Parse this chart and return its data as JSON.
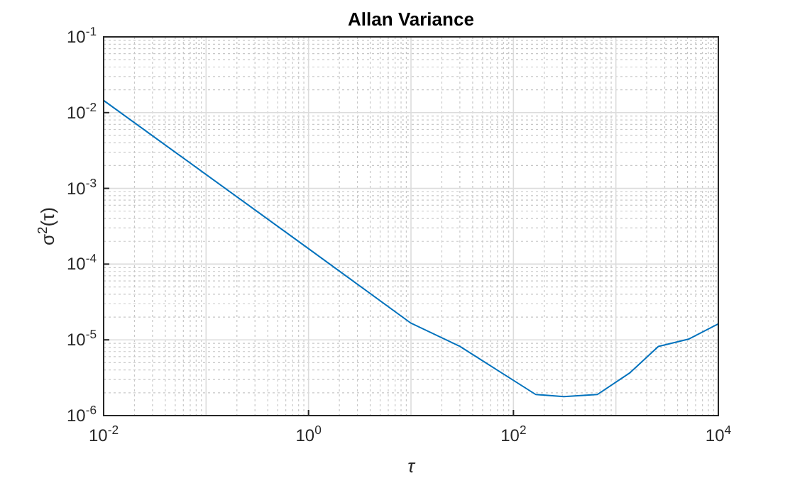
{
  "chart_data": {
    "type": "line",
    "title": "Allan Variance",
    "xlabel": "τ",
    "ylabel": "σ$^{2}$(τ)",
    "log": "xy",
    "grid": true,
    "marker": "none",
    "line_style": "solid",
    "xlim": [
      0.01,
      10000
    ],
    "ylim": [
      1e-06,
      0.1
    ],
    "xticks": [
      {
        "value": 0.01,
        "label": "10$^{-2}$"
      },
      {
        "value": 1,
        "label": "10$^{0}$"
      },
      {
        "value": 100,
        "label": "10$^{2}$"
      },
      {
        "value": 10000,
        "label": "10$^{4}$"
      }
    ],
    "yticks": [
      {
        "value": 1e-06,
        "label": "10$^{-6}$"
      },
      {
        "value": 1e-05,
        "label": "10$^{-5}$"
      },
      {
        "value": 0.0001,
        "label": "10$^{-4}$"
      },
      {
        "value": 0.001,
        "label": "10$^{-3}$"
      },
      {
        "value": 0.01,
        "label": "10$^{-2}$"
      },
      {
        "value": 0.1,
        "label": "10$^{-1}$"
      }
    ],
    "x": [
      0.01,
      1,
      10,
      30,
      165,
      310,
      660,
      1380,
      2600,
      5100,
      10000
    ],
    "series": [
      {
        "color": "#0072bd",
        "values": [
          0.0145,
          0.00016,
          1.66e-05,
          8.2e-06,
          1.9e-06,
          1.78e-06,
          1.9e-06,
          3.7e-06,
          8.2e-06,
          1.02e-05,
          1.63e-05
        ]
      }
    ]
  }
}
